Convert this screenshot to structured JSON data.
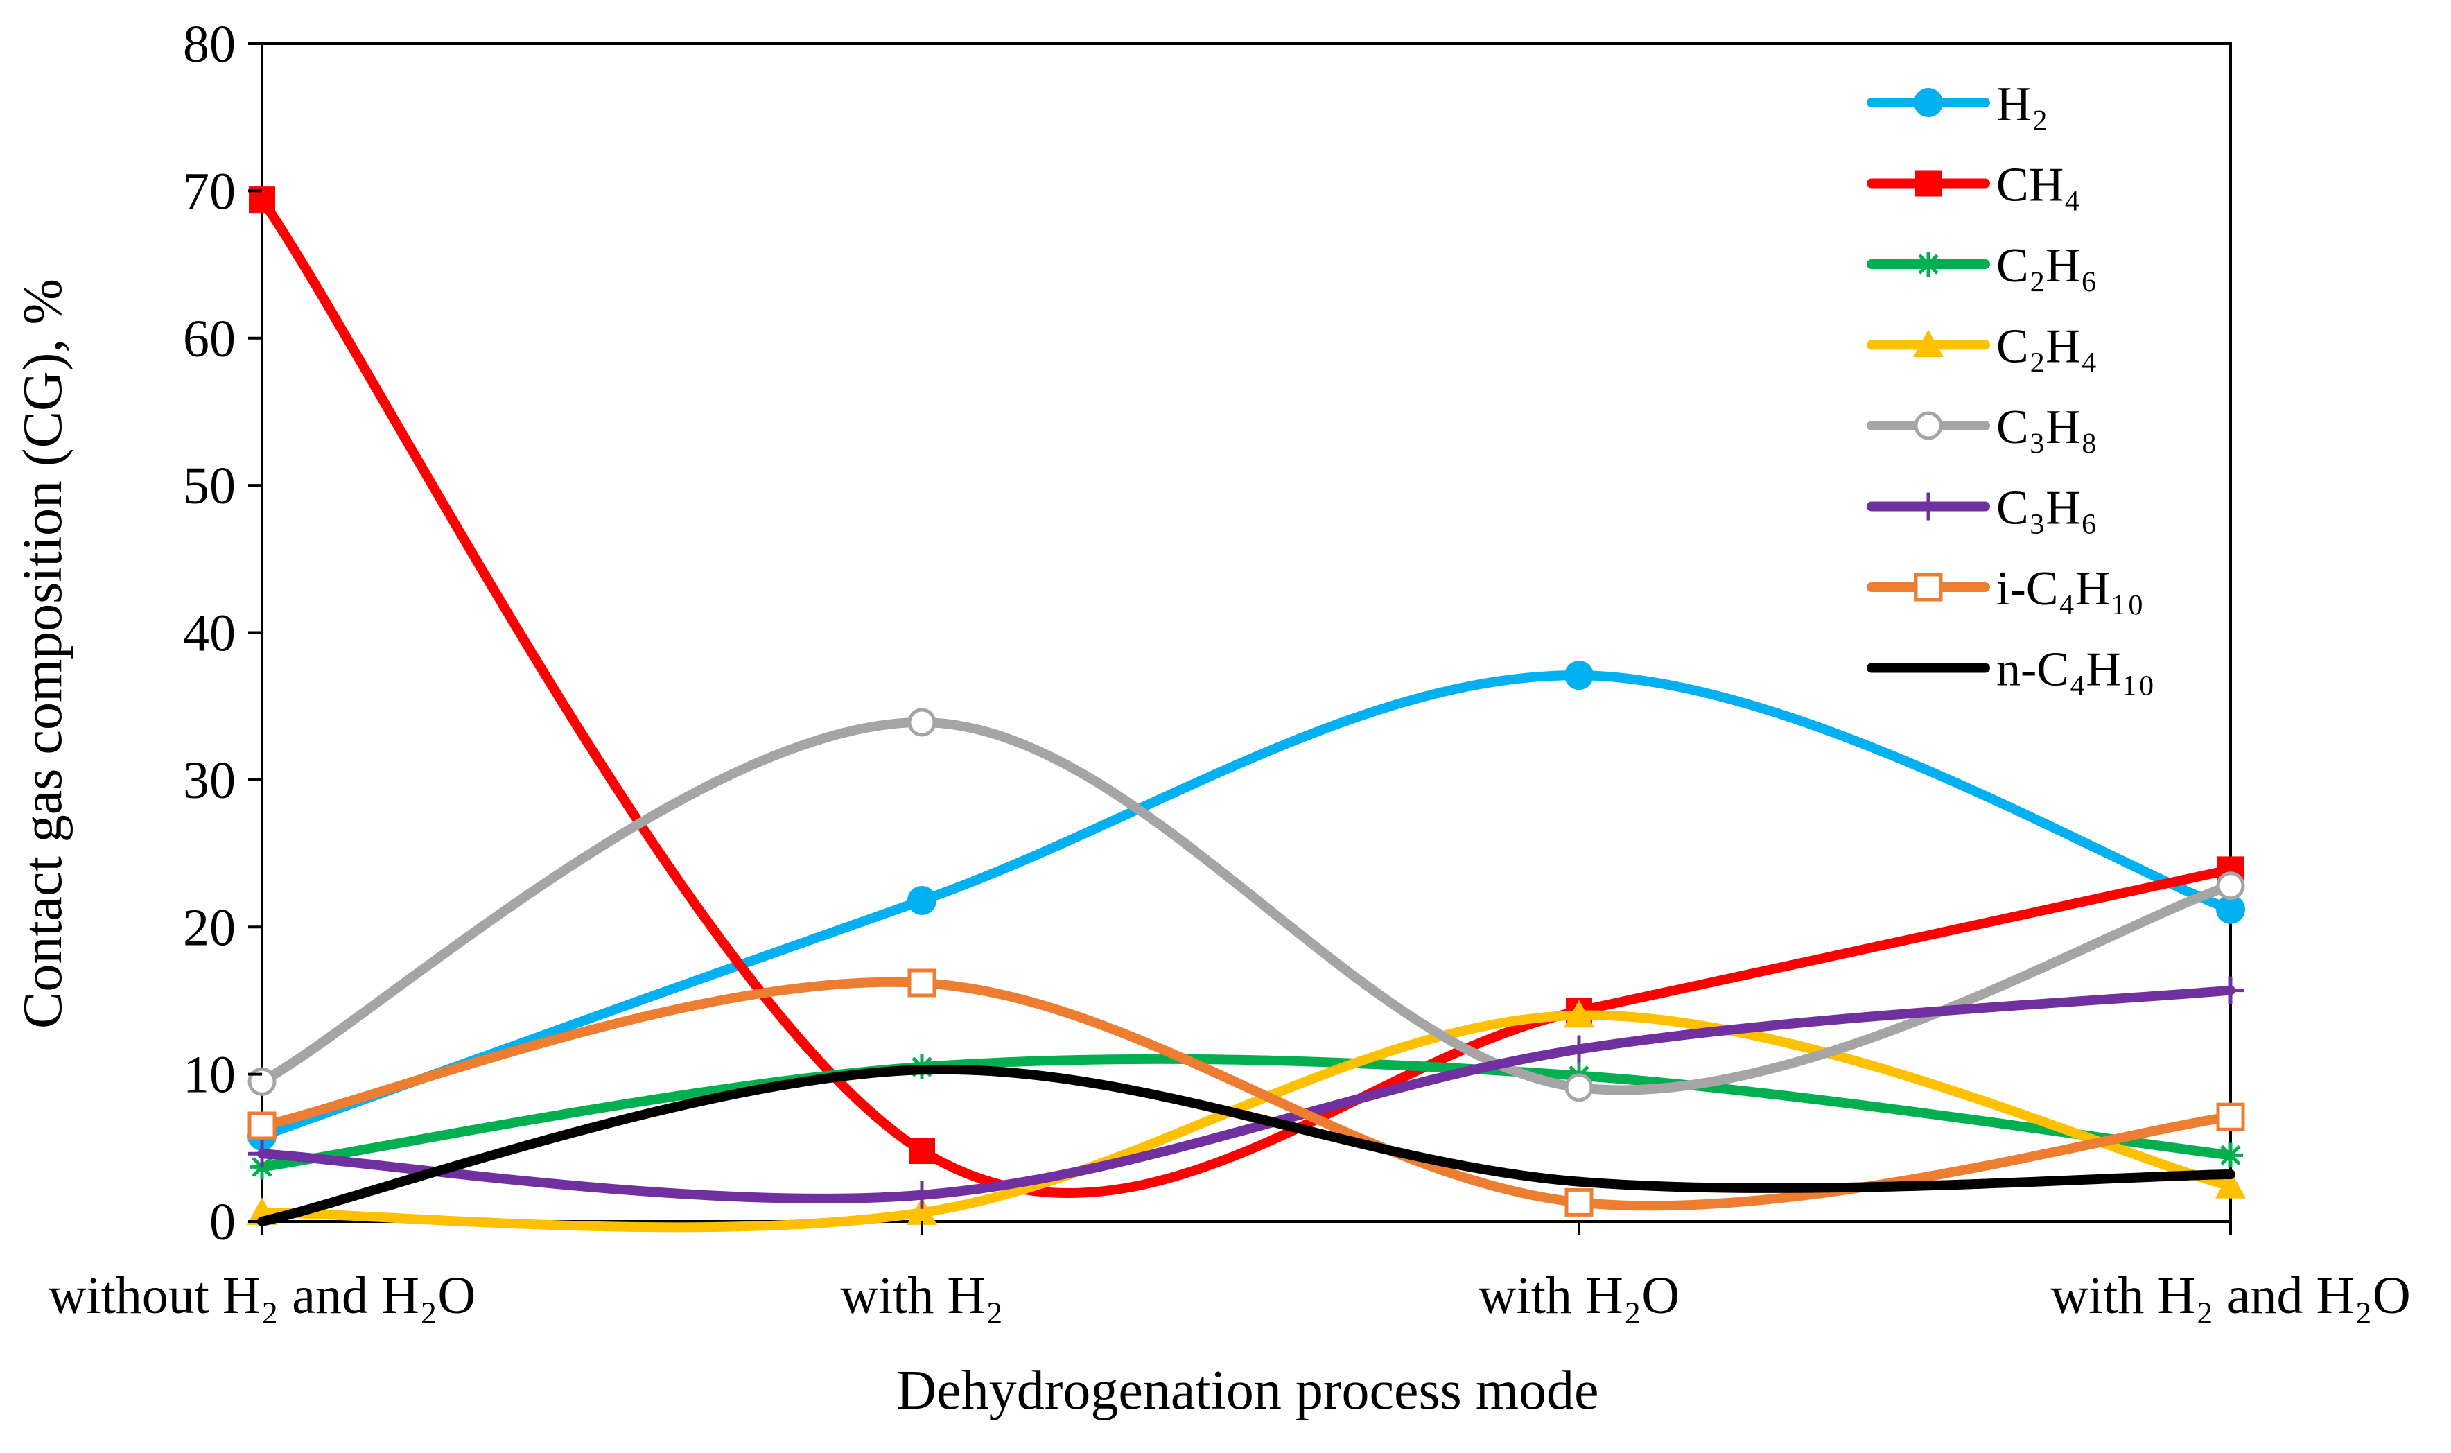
{
  "chart_data": {
    "type": "line",
    "smooth": true,
    "title": "",
    "xlabel": "Dehydrogenation process mode",
    "ylabel": "Contact gas composition (CG), %",
    "categories": [
      "without H₂ and H₂O",
      "with H₂",
      "with H₂O",
      "with H₂ and H₂O"
    ],
    "ylim": [
      0,
      80
    ],
    "yticks": [
      0,
      10,
      20,
      30,
      40,
      50,
      60,
      70,
      80
    ],
    "grid": false,
    "legend_position": "top-right",
    "series": [
      {
        "name": "H₂",
        "color": "#00b0f0",
        "marker": "circle-filled",
        "values": [
          5.8,
          21.8,
          37.1,
          21.2
        ]
      },
      {
        "name": "CH₄",
        "color": "#ff0000",
        "marker": "square-filled",
        "values": [
          69.4,
          4.8,
          14.3,
          23.9
        ]
      },
      {
        "name": "C₂H₆",
        "color": "#00b050",
        "marker": "asterisk",
        "values": [
          3.7,
          10.5,
          9.9,
          4.5
        ]
      },
      {
        "name": "C₂H₄",
        "color": "#ffc000",
        "marker": "triangle-filled",
        "values": [
          0.6,
          0.6,
          14.0,
          2.4
        ]
      },
      {
        "name": "C₃H₈",
        "color": "#a5a5a5",
        "marker": "circle-open",
        "values": [
          9.5,
          33.9,
          9.1,
          22.8
        ]
      },
      {
        "name": "C₃H₆",
        "color": "#7030a0",
        "marker": "plus",
        "values": [
          4.6,
          1.8,
          11.7,
          15.7
        ]
      },
      {
        "name": "i-C₄H₁₀",
        "color": "#ed7d31",
        "marker": "square-open",
        "values": [
          6.5,
          16.2,
          1.3,
          7.1
        ]
      },
      {
        "name": "n-C₄H₁₀",
        "color": "#000000",
        "marker": "none",
        "values": [
          0.0,
          10.3,
          2.7,
          3.2
        ]
      }
    ]
  }
}
